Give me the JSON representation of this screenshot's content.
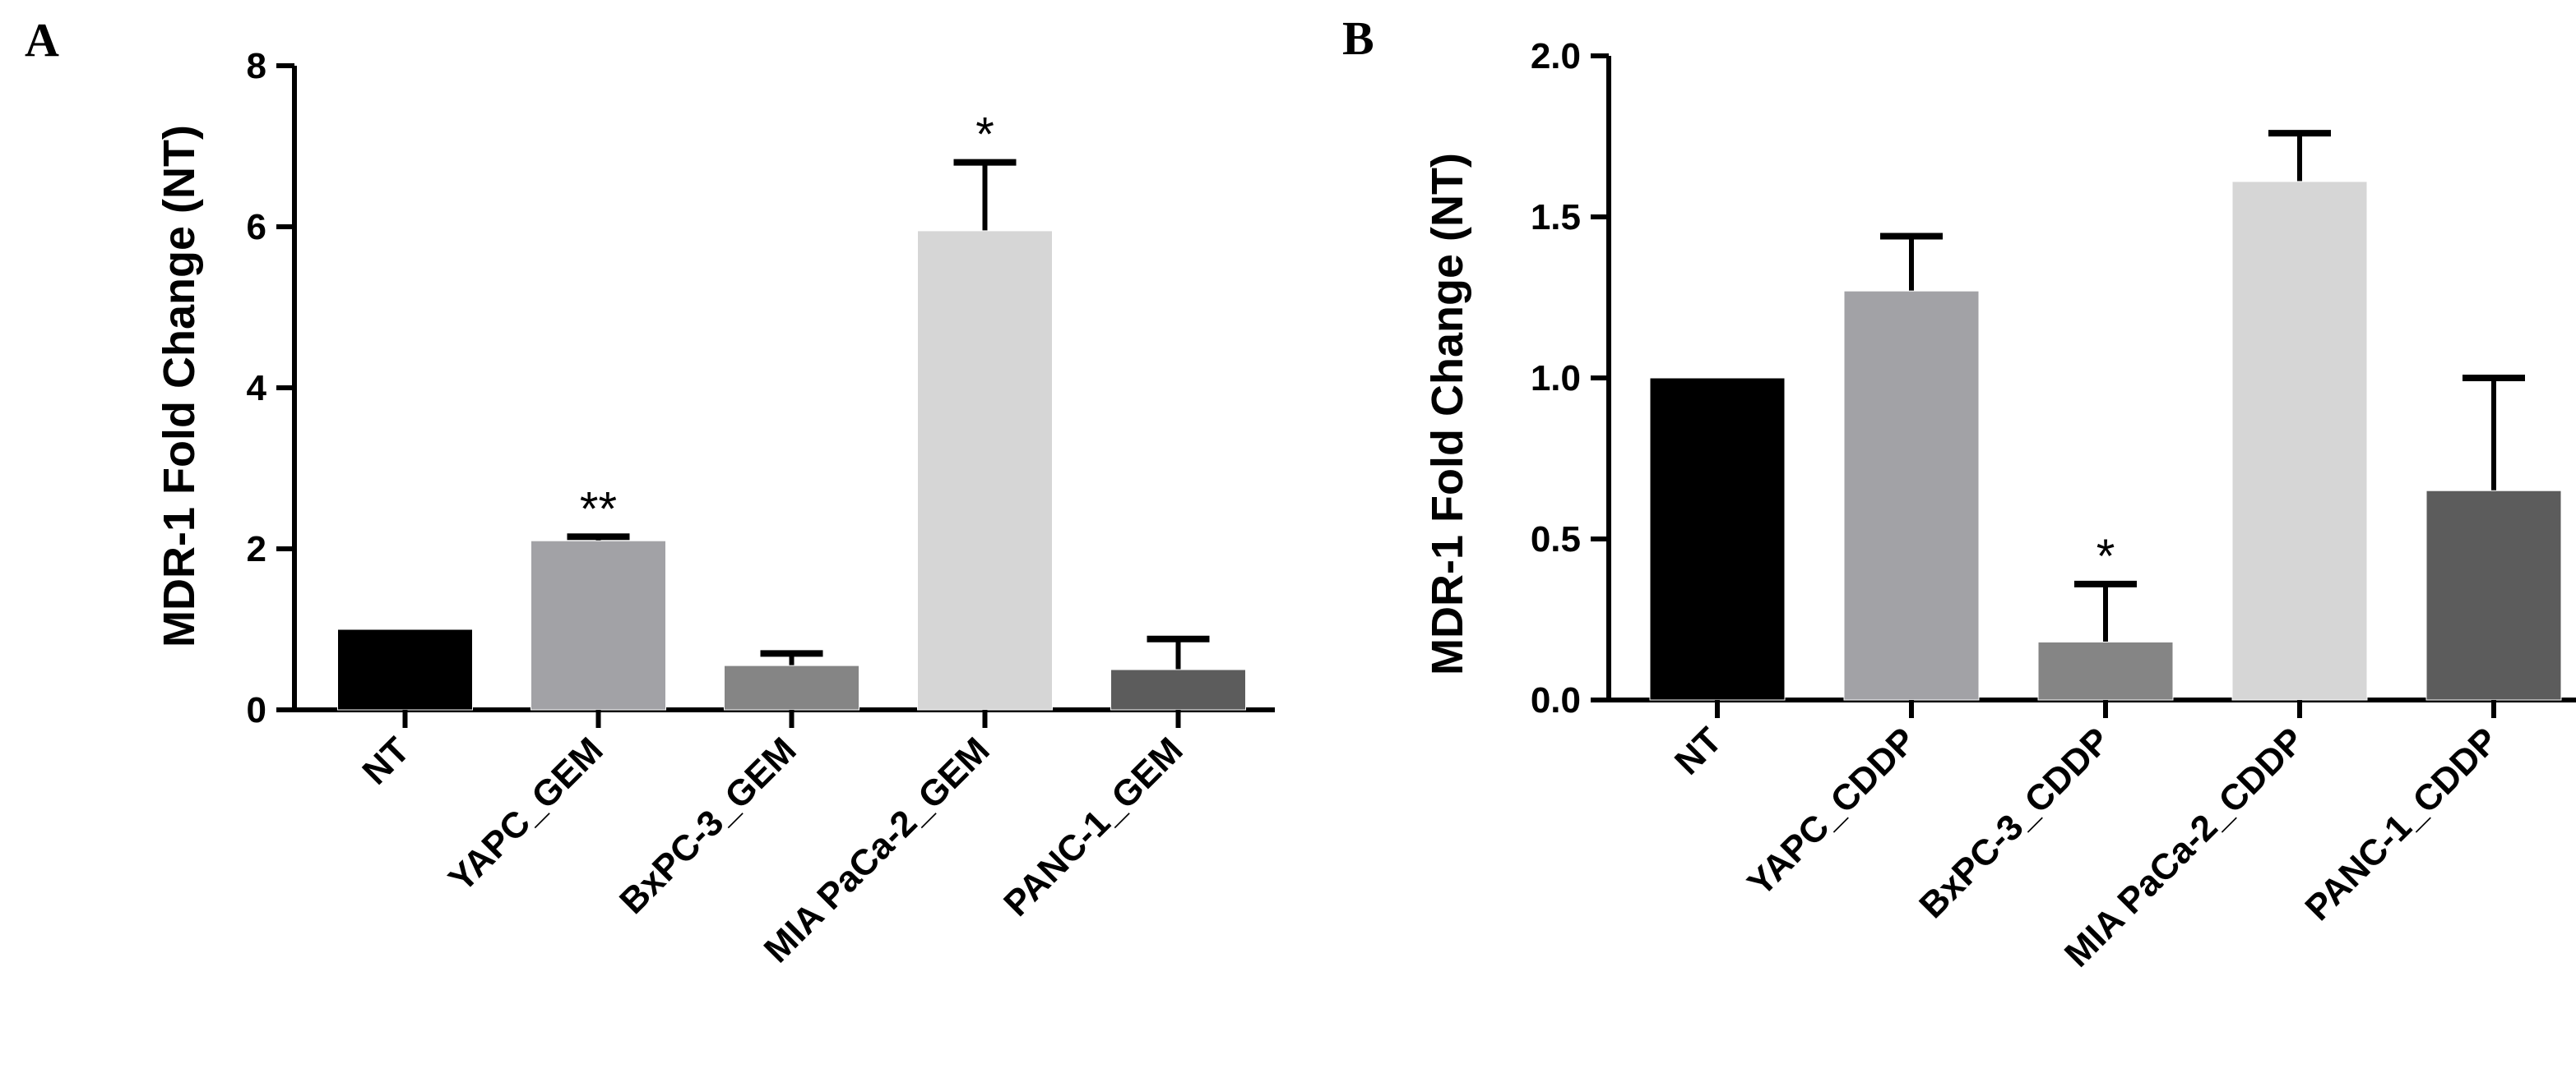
{
  "chart_data": [
    {
      "panel": "A",
      "type": "bar",
      "ylabel": "MDR-1 Fold Change (NT)",
      "ylim": [
        0,
        8
      ],
      "yticks": [
        "0",
        "2",
        "4",
        "6",
        "8"
      ],
      "categories": [
        "NT",
        "YAPC_GEM",
        "BxPC-3_GEM",
        "MIA PaCa-2_GEM",
        "PANC-1_GEM"
      ],
      "values": [
        1.0,
        2.1,
        0.55,
        5.95,
        0.5
      ],
      "errors": [
        0.0,
        0.05,
        0.15,
        0.85,
        0.38
      ],
      "significance": [
        "",
        "**",
        "",
        "*",
        ""
      ],
      "colors": [
        "#000000",
        "#a2a2a6",
        "#858585",
        "#d6d6d6",
        "#5c5c5c"
      ]
    },
    {
      "panel": "B",
      "type": "bar",
      "ylabel": "MDR-1 Fold Change (NT)",
      "ylim": [
        0,
        2.0
      ],
      "yticks": [
        "0.0",
        "0.5",
        "1.0",
        "1.5",
        "2.0"
      ],
      "categories": [
        "NT",
        "YAPC_CDDP",
        "BxPC-3_CDDP",
        "MIA PaCa-2_CDDP",
        "PANC-1_CDDP"
      ],
      "values": [
        1.0,
        1.27,
        0.18,
        1.61,
        0.65
      ],
      "errors": [
        0.0,
        0.17,
        0.18,
        0.15,
        0.35
      ],
      "significance": [
        "",
        "",
        "*",
        "",
        ""
      ],
      "colors": [
        "#000000",
        "#a2a2a6",
        "#858585",
        "#d6d6d6",
        "#5c5c5c"
      ]
    }
  ]
}
